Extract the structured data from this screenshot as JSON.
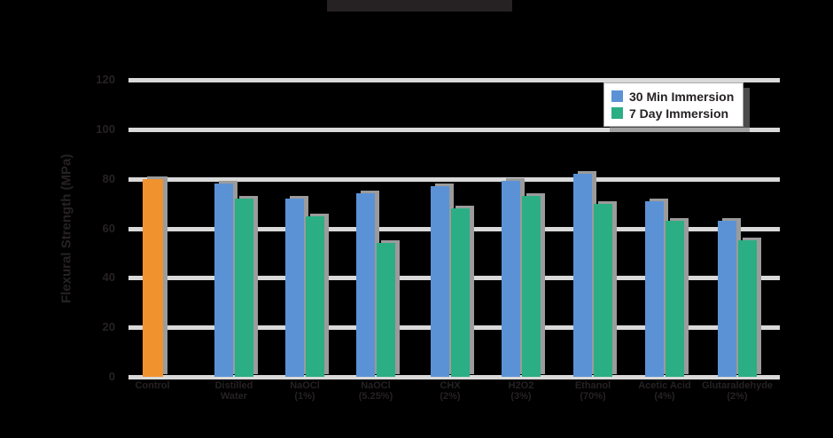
{
  "chart_data": {
    "type": "bar",
    "title": "",
    "ylabel": "Flexural Strength (MPa)",
    "xlabel": "",
    "ylim": [
      0,
      120
    ],
    "yticks": [
      0,
      20,
      40,
      60,
      80,
      100,
      120
    ],
    "grid": true,
    "legend_position": "upper right",
    "categories": [
      [
        "Control"
      ],
      [
        "Distilled",
        "Water"
      ],
      [
        "NaOCl",
        "(1%)"
      ],
      [
        "NaOCl",
        "(5.25%)"
      ],
      [
        "CHX",
        "(2%)"
      ],
      [
        "H2O2",
        "(3%)"
      ],
      [
        "Ethanol",
        "(70%)"
      ],
      [
        "Acetic Acid",
        "(4%)"
      ],
      [
        "Glutaraldehyde",
        "(2%)"
      ]
    ],
    "series": [
      {
        "name": "30 Min Immersion",
        "color": "#5B92D6",
        "values": [
          null,
          78,
          72,
          74,
          77,
          79,
          82,
          71,
          63
        ]
      },
      {
        "name": "7 Day Immersion",
        "color": "#2BAE84",
        "values": [
          null,
          72,
          65,
          54,
          68,
          73,
          70,
          63,
          55
        ]
      },
      {
        "name": "Control",
        "color": "#F0922D",
        "in_legend": false,
        "values": [
          80,
          null,
          null,
          null,
          null,
          null,
          null,
          null,
          null
        ]
      }
    ]
  },
  "colors": {
    "background": "#000000",
    "gridline": "#D9D9D9",
    "axis_text": "#262223",
    "bar_shadow": "#9B9B9B",
    "legend_background": "#FFFFFF",
    "legend_border": "#ABABAB"
  },
  "legend": {
    "items": [
      {
        "label": "30 Min Immersion",
        "color": "#5B92D6"
      },
      {
        "label": "7 Day Immersion",
        "color": "#2BAE84"
      }
    ]
  }
}
